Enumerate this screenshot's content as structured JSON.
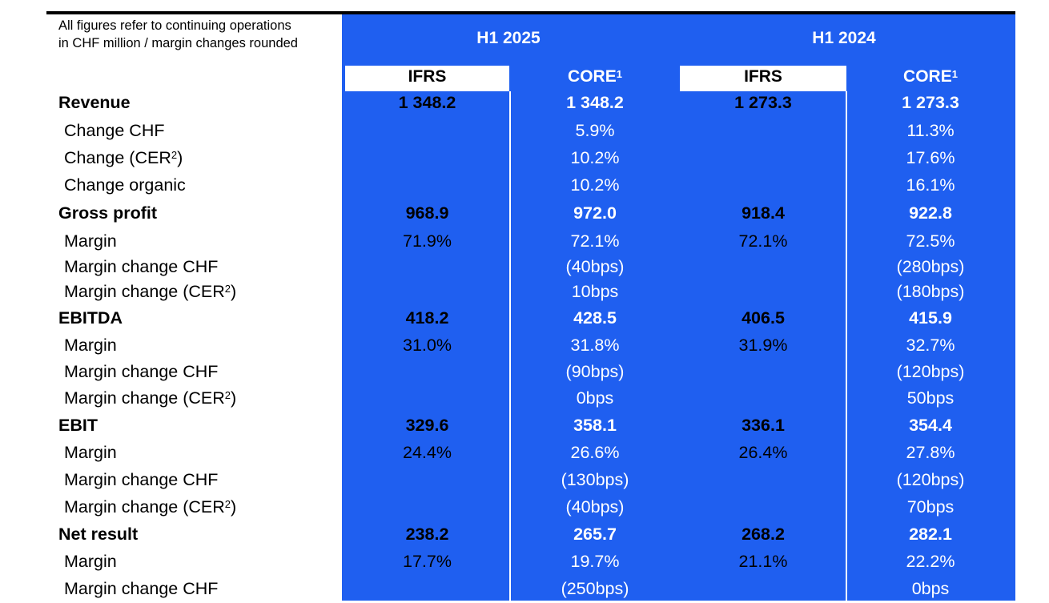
{
  "note": [
    "All figures refer to continuing operations",
    "in CHF million / margin changes rounded"
  ],
  "periods": [
    "H1 2025",
    "H1 2024"
  ],
  "subheaders": [
    {
      "text": "IFRS",
      "sup": ""
    },
    {
      "text": "CORE",
      "sup": "1"
    },
    {
      "text": "IFRS",
      "sup": ""
    },
    {
      "text": "CORE",
      "sup": "1"
    }
  ],
  "rows": [
    {
      "label": "Revenue",
      "sup": "",
      "suffix": "",
      "bold": true,
      "values": [
        "1 348.2",
        "1 348.2",
        "1 273.3",
        "1 273.3"
      ]
    },
    {
      "label": "Change CHF",
      "sup": "",
      "suffix": "",
      "bold": false,
      "values": [
        "",
        "5.9%",
        "",
        "11.3%"
      ]
    },
    {
      "label": "Change (CER",
      "sup": "2",
      "suffix": ")",
      "bold": false,
      "values": [
        "",
        "10.2%",
        "",
        "17.6%"
      ]
    },
    {
      "label": "Change organic",
      "sup": "",
      "suffix": "",
      "bold": false,
      "values": [
        "",
        "10.2%",
        "",
        "16.1%"
      ]
    },
    {
      "label": "Gross profit",
      "sup": "",
      "suffix": "",
      "bold": true,
      "values": [
        "968.9",
        "972.0",
        "918.4",
        "922.8"
      ]
    },
    {
      "label": "Margin",
      "sup": "",
      "suffix": "",
      "bold": false,
      "values": [
        "71.9%",
        "72.1%",
        "72.1%",
        "72.5%"
      ]
    },
    {
      "label": "Margin change CHF",
      "sup": "",
      "suffix": "",
      "bold": false,
      "values": [
        "",
        "(40bps)",
        "",
        "(280bps)"
      ]
    },
    {
      "label": "Margin change (CER",
      "sup": "2",
      "suffix": ")",
      "bold": false,
      "values": [
        "",
        "10bps",
        "",
        "(180bps)"
      ]
    },
    {
      "label": "EBITDA",
      "sup": "",
      "suffix": "",
      "bold": true,
      "values": [
        "418.2",
        "428.5",
        "406.5",
        "415.9"
      ]
    },
    {
      "label": "Margin",
      "sup": "",
      "suffix": "",
      "bold": false,
      "values": [
        "31.0%",
        "31.8%",
        "31.9%",
        "32.7%"
      ]
    },
    {
      "label": "Margin change CHF",
      "sup": "",
      "suffix": "",
      "bold": false,
      "values": [
        "",
        "(90bps)",
        "",
        "(120bps)"
      ]
    },
    {
      "label": "Margin change (CER",
      "sup": "2",
      "suffix": ")",
      "bold": false,
      "values": [
        "",
        "0bps",
        "",
        "50bps"
      ]
    },
    {
      "label": "EBIT",
      "sup": "",
      "suffix": "",
      "bold": true,
      "values": [
        "329.6",
        "358.1",
        "336.1",
        "354.4"
      ]
    },
    {
      "label": "Margin",
      "sup": "",
      "suffix": "",
      "bold": false,
      "values": [
        "24.4%",
        "26.6%",
        "26.4%",
        "27.8%"
      ]
    },
    {
      "label": "Margin change CHF",
      "sup": "",
      "suffix": "",
      "bold": false,
      "values": [
        "",
        "(130bps)",
        "",
        "(120bps)"
      ]
    },
    {
      "label": "Margin change (CER",
      "sup": "2",
      "suffix": ")",
      "bold": false,
      "values": [
        "",
        "(40bps)",
        "",
        "70bps"
      ]
    },
    {
      "label": "Net result",
      "sup": "",
      "suffix": "",
      "bold": true,
      "values": [
        "238.2",
        "265.7",
        "268.2",
        "282.1"
      ]
    },
    {
      "label": "Margin",
      "sup": "",
      "suffix": "",
      "bold": false,
      "values": [
        "17.7%",
        "19.7%",
        "21.1%",
        "22.2%"
      ]
    },
    {
      "label": "Margin change CHF",
      "sup": "",
      "suffix": "",
      "bold": false,
      "values": [
        "",
        "(250bps)",
        "",
        "0bps"
      ]
    }
  ],
  "colors": {
    "blue": "#1f5ff0"
  }
}
